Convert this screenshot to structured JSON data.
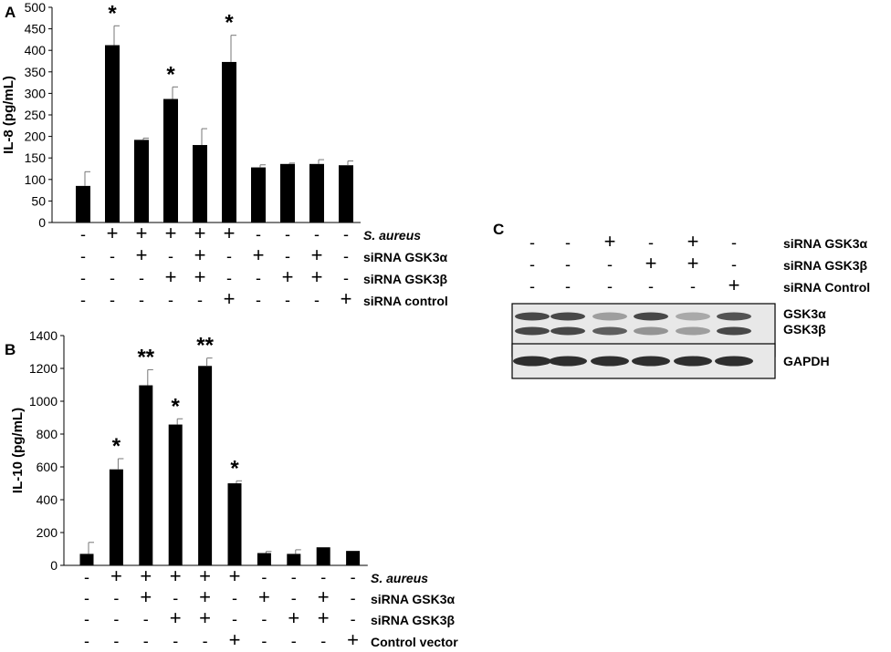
{
  "chart_data": [
    {
      "panel": "A",
      "type": "bar",
      "ylabel": "IL-8 (pg/mL)",
      "ylim": [
        0,
        500
      ],
      "yticks": [
        0,
        50,
        100,
        150,
        200,
        250,
        300,
        350,
        400,
        450,
        500
      ],
      "series": [
        {
          "values": [
            85,
            412,
            192,
            287,
            180,
            373,
            128,
            136,
            136,
            133
          ],
          "errors": [
            33,
            45,
            4,
            28,
            38,
            62,
            6,
            2,
            10,
            10
          ],
          "sig": [
            "",
            "*",
            "",
            "*",
            "",
            "*",
            "",
            "",
            "",
            ""
          ]
        }
      ],
      "conditions": [
        {
          "label": "S. aureus",
          "italic": true,
          "marks": [
            "-",
            "+",
            "+",
            "+",
            "+",
            "+",
            "-",
            "-",
            "-",
            "-"
          ]
        },
        {
          "label": "siRNA GSK3α",
          "italic": false,
          "marks": [
            "-",
            "-",
            "+",
            "-",
            "+",
            "-",
            "+",
            "-",
            "+",
            "-"
          ]
        },
        {
          "label": "siRNA GSK3β",
          "italic": false,
          "marks": [
            "-",
            "-",
            "-",
            "+",
            "+",
            "-",
            "-",
            "+",
            "+",
            "-"
          ]
        },
        {
          "label": "siRNA control",
          "italic": false,
          "marks": [
            "-",
            "-",
            "-",
            "-",
            "-",
            "+",
            "-",
            "-",
            "-",
            "+"
          ]
        }
      ]
    },
    {
      "panel": "B",
      "type": "bar",
      "ylabel": "IL-10 (pg/mL)",
      "ylim": [
        0,
        1400
      ],
      "yticks": [
        0,
        200,
        400,
        600,
        800,
        1000,
        1200,
        1400
      ],
      "series": [
        {
          "values": [
            70,
            585,
            1097,
            858,
            1215,
            500,
            75,
            70,
            110,
            88
          ],
          "errors": [
            70,
            65,
            95,
            35,
            48,
            15,
            10,
            25,
            0,
            0
          ],
          "sig": [
            "",
            "*",
            "**",
            "*",
            "**",
            "*",
            "",
            "",
            "",
            ""
          ]
        }
      ],
      "conditions": [
        {
          "label": "S. aureus",
          "italic": true,
          "marks": [
            "-",
            "+",
            "+",
            "+",
            "+",
            "+",
            "-",
            "-",
            "-",
            "-"
          ]
        },
        {
          "label": "siRNA GSK3α",
          "italic": false,
          "marks": [
            "-",
            "-",
            "+",
            "-",
            "+",
            "-",
            "+",
            "-",
            "+",
            "-"
          ]
        },
        {
          "label": "siRNA GSK3β",
          "italic": false,
          "marks": [
            "-",
            "-",
            "-",
            "+",
            "+",
            "-",
            "-",
            "+",
            "+",
            "-"
          ]
        },
        {
          "label": "Control vector",
          "italic": false,
          "marks": [
            "-",
            "-",
            "-",
            "-",
            "-",
            "+",
            "-",
            "-",
            "-",
            "+"
          ]
        }
      ]
    }
  ],
  "panel_c": {
    "panel": "C",
    "type": "western-blot",
    "conditions": [
      {
        "label": "siRNA GSK3α",
        "marks": [
          "-",
          "-",
          "+",
          "-",
          "+",
          "-"
        ]
      },
      {
        "label": "siRNA GSK3β",
        "marks": [
          "-",
          "-",
          "-",
          "+",
          "+",
          "-"
        ]
      },
      {
        "label": "siRNA Control",
        "marks": [
          "-",
          "-",
          "-",
          "-",
          "-",
          "+"
        ]
      }
    ],
    "blots": [
      {
        "labels": [
          "GSK3α",
          "GSK3β"
        ],
        "band_intensity": [
          [
            0.85,
            0.85,
            0.45,
            0.85,
            0.4,
            0.8
          ],
          [
            0.85,
            0.85,
            0.75,
            0.5,
            0.45,
            0.85
          ]
        ]
      },
      {
        "labels": [
          "GAPDH"
        ],
        "band_intensity": [
          [
            0.95,
            0.95,
            0.95,
            0.95,
            0.95,
            0.95
          ]
        ]
      }
    ]
  }
}
